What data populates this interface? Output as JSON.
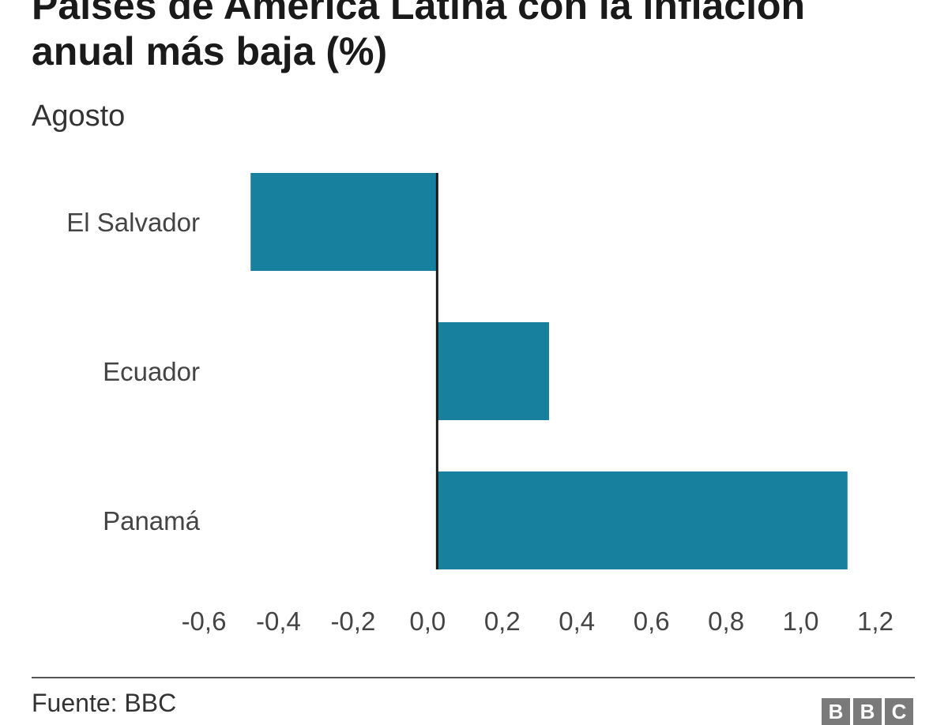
{
  "chart_data": {
    "type": "bar",
    "orientation": "horizontal",
    "title": "Países de América Latina con la inflación anual más baja (%)",
    "subtitle": "Agosto",
    "categories": [
      "El Salvador",
      "Ecuador",
      "Panamá"
    ],
    "values": [
      -0.5,
      0.3,
      1.1
    ],
    "xlim": [
      -0.6,
      1.2
    ],
    "xticks": [
      "-0,6",
      "-0,4",
      "-0,2",
      "0,0",
      "0,2",
      "0,4",
      "0,6",
      "0,8",
      "1,0",
      "1,2"
    ],
    "xtick_values": [
      -0.6,
      -0.4,
      -0.2,
      0.0,
      0.2,
      0.4,
      0.6,
      0.8,
      1.0,
      1.2
    ],
    "grid": false,
    "bar_color": "#17809f",
    "zero_line_color": "#1a1a1a"
  },
  "footer": {
    "source": "Fuente: BBC",
    "logo_letters": [
      "B",
      "B",
      "C"
    ]
  }
}
